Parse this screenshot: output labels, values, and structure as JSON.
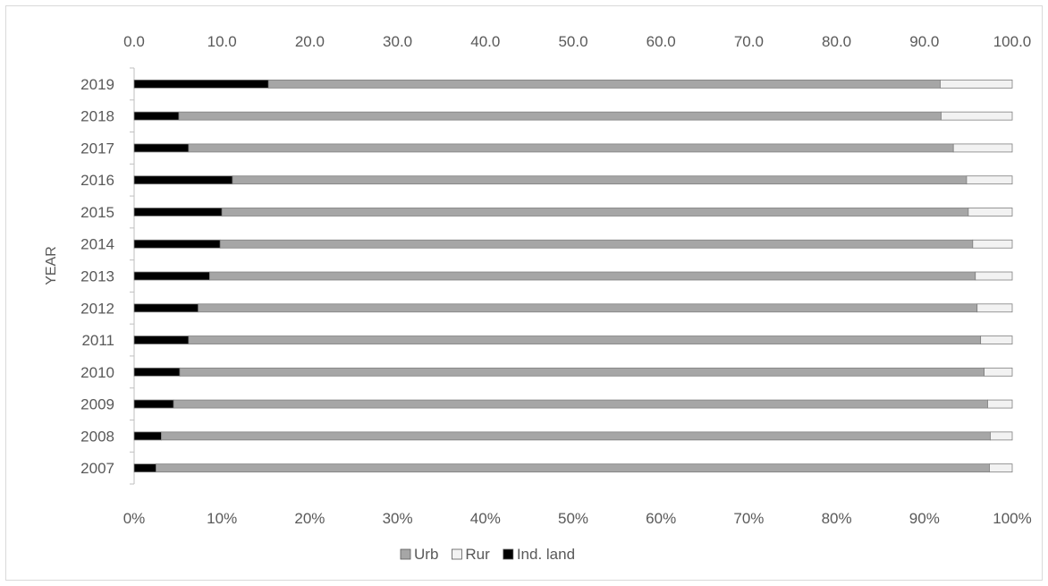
{
  "chart_data": {
    "type": "bar",
    "orientation": "horizontal",
    "stacked": "percent",
    "ylabel": "YEAR",
    "xlabel": "",
    "title": "",
    "categories": [
      "2007",
      "2008",
      "2009",
      "2010",
      "2011",
      "2012",
      "2013",
      "2014",
      "2015",
      "2016",
      "2017",
      "2018",
      "2019"
    ],
    "series": [
      {
        "name": "Ind. land",
        "color": "#000000",
        "values": [
          2.5,
          3.1,
          4.5,
          5.2,
          6.2,
          7.3,
          8.6,
          9.8,
          10.0,
          11.2,
          6.2,
          5.1,
          15.3
        ]
      },
      {
        "name": "Urb",
        "color": "#a6a6a6",
        "values": [
          94.9,
          94.4,
          92.7,
          91.6,
          90.2,
          88.7,
          87.2,
          85.7,
          85.0,
          83.6,
          87.1,
          86.8,
          76.5
        ]
      },
      {
        "name": "Rur",
        "color": "#f2f2f2",
        "values": [
          2.6,
          2.5,
          2.8,
          3.2,
          3.6,
          4.0,
          4.2,
          4.5,
          5.0,
          5.2,
          6.7,
          8.1,
          8.2
        ]
      }
    ],
    "xlim": [
      0,
      100
    ],
    "top_axis_ticks": [
      "0.0",
      "10.0",
      "20.0",
      "30.0",
      "40.0",
      "50.0",
      "60.0",
      "70.0",
      "80.0",
      "90.0",
      "100.0"
    ],
    "bottom_axis_ticks": [
      "0%",
      "10%",
      "20%",
      "30%",
      "40%",
      "50%",
      "60%",
      "70%",
      "80%",
      "90%",
      "100%"
    ],
    "legend_order": [
      "Urb",
      "Rur",
      "Ind. land"
    ],
    "legend_position": "bottom",
    "grid": false
  }
}
